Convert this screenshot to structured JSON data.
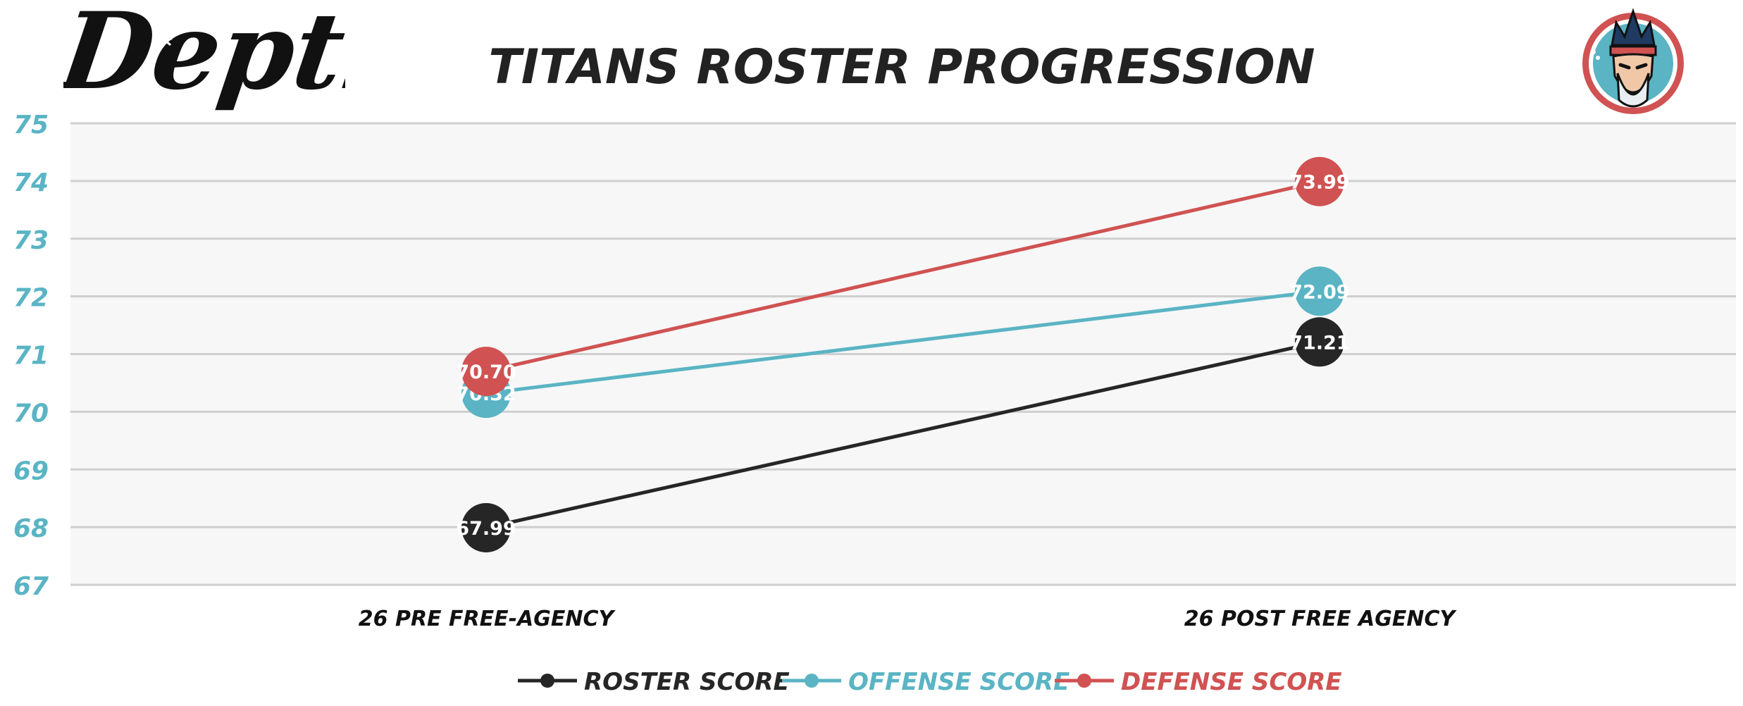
{
  "brand": {
    "logo_text": "Depth"
  },
  "colors": {
    "roster": "#262626",
    "offense": "#5ab4c4",
    "defense": "#d05252",
    "axis_label": "#5ab4c4",
    "grid": "#cfcfcf",
    "plot_bg": "#f7f7f7",
    "title": "#222222"
  },
  "chart_data": {
    "type": "line",
    "title": "TITANS ROSTER PROGRESSION",
    "xlabel": "",
    "ylabel": "",
    "categories": [
      "26 PRE FREE-AGENCY",
      "26 POST FREE AGENCY"
    ],
    "ylim": [
      67,
      75
    ],
    "yticks": [
      67,
      68,
      69,
      70,
      71,
      72,
      73,
      74,
      75
    ],
    "grid": true,
    "legend_position": "bottom",
    "series": [
      {
        "name": "ROSTER SCORE",
        "values": [
          67.99,
          71.21
        ],
        "labels": [
          "67.99",
          "71.21"
        ],
        "color": "#262626"
      },
      {
        "name": "OFFENSE SCORE",
        "values": [
          70.32,
          72.09
        ],
        "labels": [
          "70.32",
          "72.09"
        ],
        "color": "#5ab4c4"
      },
      {
        "name": "DEFENSE SCORE",
        "values": [
          70.7,
          73.99
        ],
        "labels": [
          "70.70",
          "73.99"
        ],
        "color": "#d05252"
      }
    ]
  }
}
